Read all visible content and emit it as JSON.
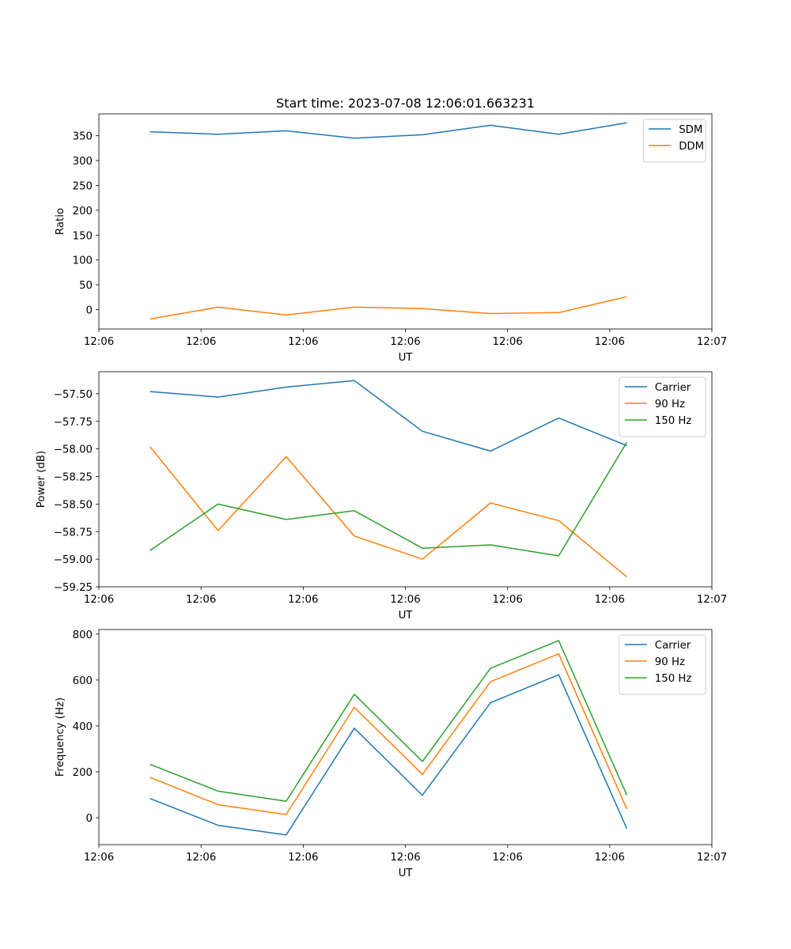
{
  "figure": {
    "title": "Start time: 2023-07-08 12:06:01.663231"
  },
  "chart_data": [
    {
      "type": "line",
      "title": "Start time: 2023-07-08 12:06:01.663231",
      "xlabel": "UT",
      "ylabel": "Ratio",
      "x": [
        1,
        2,
        3,
        4,
        5,
        6,
        7,
        8
      ],
      "xlim": [
        0.25,
        9.25
      ],
      "x_ticks": [
        0.25,
        1.75,
        3.25,
        4.75,
        6.25,
        7.75,
        9.25
      ],
      "x_tick_labels": [
        "12:06",
        "12:06",
        "12:06",
        "12:06",
        "12:06",
        "12:06",
        "12:07"
      ],
      "ylim": [
        -39,
        394
      ],
      "y_ticks": [
        0,
        50,
        100,
        150,
        200,
        250,
        300,
        350
      ],
      "y_tick_labels": [
        "0",
        "50",
        "100",
        "150",
        "200",
        "250",
        "300",
        "350"
      ],
      "legend_position": "top-right",
      "series": [
        {
          "name": "SDM",
          "color": "#1f77b4",
          "values": [
            358,
            353,
            360,
            345,
            352,
            371,
            353,
            376
          ]
        },
        {
          "name": "DDM",
          "color": "#ff7f0e",
          "values": [
            -19,
            5,
            -11,
            5,
            2,
            -8,
            -6,
            26
          ]
        }
      ]
    },
    {
      "type": "line",
      "xlabel": "UT",
      "ylabel": "Power (dB)",
      "x": [
        1,
        2,
        3,
        4,
        5,
        6,
        7,
        8
      ],
      "xlim": [
        0.25,
        9.25
      ],
      "x_ticks": [
        0.25,
        1.75,
        3.25,
        4.75,
        6.25,
        7.75,
        9.25
      ],
      "x_tick_labels": [
        "12:06",
        "12:06",
        "12:06",
        "12:06",
        "12:06",
        "12:06",
        "12:07"
      ],
      "ylim": [
        -59.25,
        -57.3
      ],
      "y_ticks": [
        -59.25,
        -59.0,
        -58.75,
        -58.5,
        -58.25,
        -58.0,
        -57.75,
        -57.5
      ],
      "y_tick_labels": [
        "−59.25",
        "−59.00",
        "−58.75",
        "−58.50",
        "−58.25",
        "−58.00",
        "−57.75",
        "−57.50"
      ],
      "legend_position": "top-right",
      "series": [
        {
          "name": "Carrier",
          "color": "#1f77b4",
          "values": [
            -57.48,
            -57.53,
            -57.44,
            -57.38,
            -57.84,
            -58.02,
            -57.72,
            -57.97
          ]
        },
        {
          "name": "90 Hz",
          "color": "#ff7f0e",
          "values": [
            -57.98,
            -58.74,
            -58.07,
            -58.79,
            -59.0,
            -58.49,
            -58.65,
            -59.16
          ]
        },
        {
          "name": "150 Hz",
          "color": "#2 ca02c",
          "values": [
            -58.92,
            -58.5,
            -58.64,
            -58.56,
            -58.9,
            -58.87,
            -58.97,
            -57.94
          ]
        }
      ]
    },
    {
      "type": "line",
      "xlabel": "UT",
      "ylabel": "Frequency (Hz)",
      "x": [
        1,
        2,
        3,
        4,
        5,
        6,
        7,
        8
      ],
      "xlim": [
        0.25,
        9.25
      ],
      "x_ticks": [
        0.25,
        1.75,
        3.25,
        4.75,
        6.25,
        7.75,
        9.25
      ],
      "x_tick_labels": [
        "12:06",
        "12:06",
        "12:06",
        "12:06",
        "12:06",
        "12:06",
        "12:07"
      ],
      "ylim": [
        -117,
        820
      ],
      "y_ticks": [
        0,
        200,
        400,
        600,
        800
      ],
      "y_tick_labels": [
        "0",
        "200",
        "400",
        "600",
        "800"
      ],
      "legend_position": "top-right",
      "series": [
        {
          "name": "Carrier",
          "color": "#1f77b4",
          "values": [
            84,
            -33,
            -75,
            390,
            98,
            501,
            623,
            -47
          ]
        },
        {
          "name": "90 Hz",
          "color": "#ff7f0e",
          "values": [
            176,
            57,
            14,
            481,
            189,
            593,
            714,
            38
          ]
        },
        {
          "name": "150 Hz",
          "color": "#2ca02c",
          "values": [
            233,
            116,
            72,
            538,
            245,
            651,
            772,
            99
          ]
        }
      ]
    }
  ]
}
